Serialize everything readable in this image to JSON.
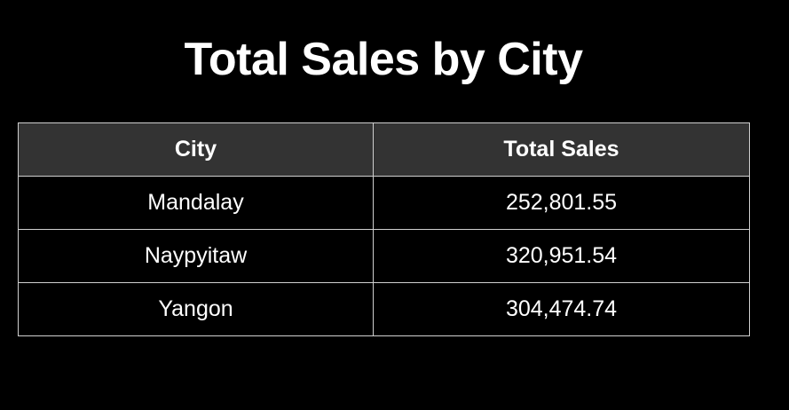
{
  "chart_data": {
    "type": "table",
    "title": "Total Sales by City",
    "columns": [
      "City",
      "Total Sales"
    ],
    "rows": [
      [
        "Mandalay",
        "252,801.55"
      ],
      [
        "Naypyitaw",
        "320,951.54"
      ],
      [
        "Yangon",
        "304,474.74"
      ]
    ],
    "colors": {
      "background": "#000000",
      "header_background": "#333333",
      "border": "#d0d0d0",
      "text": "#ffffff"
    }
  }
}
